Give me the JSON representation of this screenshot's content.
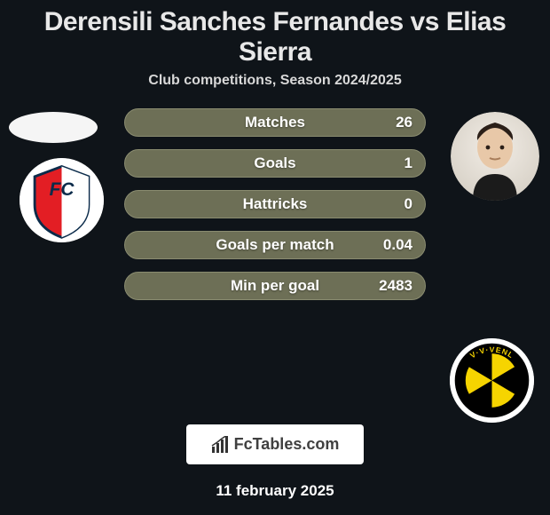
{
  "title": {
    "text": "Derensili Sanches Fernandes vs Elias Sierra",
    "fontsize": 30,
    "color": "#e8e8e8"
  },
  "subtitle": {
    "text": "Club competitions, Season 2024/2025",
    "fontsize": 16,
    "color": "#d8d8d8"
  },
  "bars": {
    "label_fontsize": 17,
    "value_fontsize": 17,
    "bar_bg": "#6d6f56",
    "bar_border": "#8a8c70",
    "rows": [
      {
        "label": "Matches",
        "value": "26"
      },
      {
        "label": "Goals",
        "value": "1"
      },
      {
        "label": "Hattricks",
        "value": "0"
      },
      {
        "label": "Goals per match",
        "value": "0.04"
      },
      {
        "label": "Min per goal",
        "value": "2483"
      }
    ]
  },
  "club_left": {
    "name": "FC Utrecht",
    "shield_red": "#e31e24",
    "shield_white": "#ffffff",
    "shield_border": "#0b2b4a",
    "fc_text": "FC"
  },
  "club_right": {
    "name": "VVV-Venlo",
    "outer": "#000000",
    "inner": "#f6d400",
    "text": "V·V·VENL"
  },
  "brand": {
    "text": "FcTables.com",
    "icon_bars": [
      "#333",
      "#333",
      "#333",
      "#333"
    ]
  },
  "date": {
    "text": "11 february 2025",
    "fontsize": 17
  },
  "background_color": "#0f1419"
}
